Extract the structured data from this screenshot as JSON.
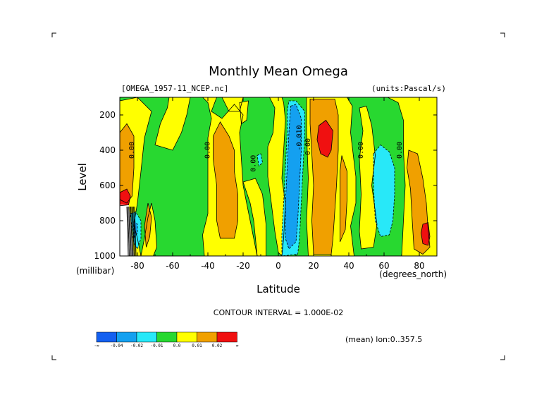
{
  "chart_data": {
    "type": "heatmap",
    "title": "Monthly Mean Omega",
    "dataset_label": "[OMEGA_1957-11_NCEP.nc]",
    "units_label": "(units:Pascal/s)",
    "xlabel": "Latitude",
    "ylabel": "Level",
    "x_unit_label": "(degrees_north)",
    "y_unit_label": "(millibar)",
    "contour_interval_text": "CONTOUR INTERVAL = 1.000E-02",
    "mean_text": "(mean) lon:0..357.5",
    "x_ticks": [
      "-80",
      "-60",
      "-40",
      "-20",
      "0",
      "20",
      "40",
      "60",
      "80"
    ],
    "x_tick_values": [
      -80,
      -60,
      -40,
      -20,
      0,
      20,
      40,
      60,
      80
    ],
    "y_ticks": [
      "200",
      "400",
      "600",
      "800",
      "1000"
    ],
    "y_tick_values": [
      200,
      400,
      600,
      800,
      1000
    ],
    "xlim": [
      -90,
      90
    ],
    "ylim": [
      1000,
      100
    ],
    "contour_labels": [
      {
        "text": "0.00",
        "lat": -82,
        "lev": 400
      },
      {
        "text": "0.00",
        "lat": -39,
        "lev": 400
      },
      {
        "text": "0.00",
        "lat": -13,
        "lev": 475
      },
      {
        "text": "0.00",
        "lat": 48,
        "lev": 400
      },
      {
        "text": "0.00",
        "lat": 70,
        "lev": 400
      },
      {
        "text": "-0.010",
        "lat": 13,
        "lev": 330
      },
      {
        "text": "0.00",
        "lat": 18,
        "lev": 380
      }
    ],
    "colorbar": {
      "colors": [
        "#1460f0",
        "#14a0f0",
        "#28e8f8",
        "#28d830",
        "#ffff00",
        "#f0a000",
        "#f01010"
      ],
      "labels": [
        "-∞",
        "-0.04",
        "-0.02",
        "-0.01",
        "0.0",
        "0.01",
        "0.02",
        "∞"
      ]
    },
    "regions": [
      {
        "level": "green",
        "color": "#28d830",
        "polygons": [
          [
            [
              -90,
              100
            ],
            [
              90,
              100
            ],
            [
              90,
              1000
            ],
            [
              -90,
              1000
            ]
          ]
        ]
      },
      {
        "level": "yellow",
        "color": "#ffff00",
        "polygons": [
          [
            [
              -90,
              120
            ],
            [
              -80,
              100
            ],
            [
              -72,
              180
            ],
            [
              -76,
              330
            ],
            [
              -78,
              520
            ],
            [
              -80,
              700
            ],
            [
              -82,
              820
            ],
            [
              -80,
              900
            ],
            [
              -78,
              1000
            ],
            [
              -90,
              1000
            ]
          ],
          [
            [
              -78,
              1000
            ],
            [
              -76,
              900
            ],
            [
              -74,
              780
            ],
            [
              -72,
              700
            ],
            [
              -70,
              800
            ],
            [
              -69,
              950
            ],
            [
              -71,
              1000
            ]
          ],
          [
            [
              -62,
              100
            ],
            [
              -50,
              100
            ],
            [
              -52,
              200
            ],
            [
              -55,
              300
            ],
            [
              -60,
              400
            ],
            [
              -70,
              370
            ],
            [
              -67,
              250
            ],
            [
              -63,
              160
            ]
          ],
          [
            [
              -43,
              100
            ],
            [
              -40,
              130
            ],
            [
              -38,
              220
            ],
            [
              -40,
              330
            ],
            [
              -40,
              600
            ],
            [
              -40,
              760
            ],
            [
              -43,
              880
            ],
            [
              -42,
              1000
            ],
            [
              -12,
              1000
            ],
            [
              -14,
              900
            ],
            [
              -17,
              750
            ],
            [
              -20,
              600
            ],
            [
              -22,
              300
            ],
            [
              -20,
              200
            ],
            [
              -25,
              140
            ],
            [
              -32,
              220
            ],
            [
              -38,
              180
            ],
            [
              -35,
              100
            ]
          ],
          [
            [
              -32,
              100
            ],
            [
              -28,
              180
            ],
            [
              -22,
              180
            ],
            [
              -20,
              100
            ]
          ],
          [
            [
              -20,
              580
            ],
            [
              -16,
              700
            ],
            [
              -14,
              800
            ],
            [
              -12,
              1000
            ],
            [
              -7,
              1000
            ],
            [
              -7,
              820
            ],
            [
              -9,
              650
            ],
            [
              -13,
              560
            ]
          ],
          [
            [
              -5,
              100
            ],
            [
              -2,
              160
            ],
            [
              -3,
              300
            ],
            [
              -6,
              380
            ],
            [
              -6,
              550
            ],
            [
              -4,
              700
            ],
            [
              -2,
              860
            ],
            [
              0,
              980
            ],
            [
              2,
              1000
            ],
            [
              3,
              900
            ],
            [
              4,
              700
            ],
            [
              2,
              560
            ],
            [
              3,
              400
            ],
            [
              4,
              230
            ],
            [
              3,
              130
            ],
            [
              2,
              100
            ]
          ],
          [
            [
              16,
              100
            ],
            [
              16,
              300
            ],
            [
              17,
              560
            ],
            [
              16,
              800
            ],
            [
              17,
              1000
            ],
            [
              43,
              1000
            ],
            [
              41,
              830
            ],
            [
              44,
              700
            ],
            [
              44,
              550
            ],
            [
              41,
              300
            ],
            [
              42,
              150
            ],
            [
              39,
              100
            ]
          ],
          [
            [
              46,
              160
            ],
            [
              48,
              290
            ],
            [
              46,
              450
            ],
            [
              47,
              650
            ],
            [
              46,
              860
            ],
            [
              47,
              960
            ],
            [
              54,
              950
            ],
            [
              56,
              820
            ],
            [
              53,
              600
            ],
            [
              55,
              430
            ],
            [
              53,
              260
            ],
            [
              50,
              150
            ]
          ],
          [
            [
              62,
              100
            ],
            [
              68,
              130
            ],
            [
              71,
              230
            ],
            [
              71,
              400
            ],
            [
              72,
              600
            ],
            [
              71,
              800
            ],
            [
              70,
              1000
            ],
            [
              90,
              1000
            ],
            [
              90,
              100
            ]
          ],
          [
            [
              -22,
              130
            ],
            [
              -17,
              120
            ],
            [
              -18,
              230
            ],
            [
              -21,
              250
            ]
          ]
        ]
      },
      {
        "level": "orange",
        "color": "#f0a000",
        "polygons": [
          [
            [
              -90,
              300
            ],
            [
              -86,
              250
            ],
            [
              -82,
              320
            ],
            [
              -82,
              500
            ],
            [
              -83,
              660
            ],
            [
              -86,
              700
            ],
            [
              -90,
              680
            ]
          ],
          [
            [
              -37,
              320
            ],
            [
              -33,
              240
            ],
            [
              -28,
              320
            ],
            [
              -25,
              400
            ],
            [
              -25,
              520
            ],
            [
              -23,
              650
            ],
            [
              -23,
              800
            ],
            [
              -25,
              900
            ],
            [
              -33,
              900
            ],
            [
              -35,
              800
            ],
            [
              -35,
              600
            ],
            [
              -37,
              450
            ]
          ],
          [
            [
              18,
              110
            ],
            [
              22,
              110
            ],
            [
              32,
              110
            ],
            [
              34,
              200
            ],
            [
              34,
              400
            ],
            [
              33,
              600
            ],
            [
              32,
              750
            ],
            [
              31,
              900
            ],
            [
              30,
              990
            ],
            [
              20,
              990
            ],
            [
              19,
              800
            ],
            [
              20,
              600
            ],
            [
              19,
              420
            ],
            [
              18,
              250
            ]
          ],
          [
            [
              74,
              400
            ],
            [
              79,
              420
            ],
            [
              82,
              560
            ],
            [
              84,
              700
            ],
            [
              85,
              850
            ],
            [
              86,
              950
            ],
            [
              82,
              990
            ],
            [
              77,
              960
            ],
            [
              76,
              800
            ],
            [
              75,
              620
            ],
            [
              73,
              500
            ]
          ],
          [
            [
              36,
              430
            ],
            [
              39,
              520
            ],
            [
              39,
              680
            ],
            [
              38,
              850
            ],
            [
              35,
              920
            ],
            [
              35,
              700
            ],
            [
              35,
              520
            ]
          ],
          [
            [
              -74,
              700
            ],
            [
              -72,
              780
            ],
            [
              -73,
              890
            ],
            [
              -75,
              950
            ],
            [
              -76,
              830
            ]
          ]
        ]
      },
      {
        "level": "red",
        "color": "#f01010",
        "polygons": [
          [
            [
              -90,
              640
            ],
            [
              -86,
              620
            ],
            [
              -84,
              660
            ],
            [
              -85,
              710
            ],
            [
              -90,
              715
            ]
          ],
          [
            [
              23,
              260
            ],
            [
              27,
              230
            ],
            [
              31,
              290
            ],
            [
              30,
              400
            ],
            [
              28,
              440
            ],
            [
              24,
              420
            ],
            [
              22,
              340
            ]
          ],
          [
            [
              82,
              820
            ],
            [
              85,
              810
            ],
            [
              86,
              890
            ],
            [
              85,
              940
            ],
            [
              82,
              930
            ],
            [
              81,
              870
            ]
          ]
        ]
      },
      {
        "level": "cyan",
        "color": "#28e8f8",
        "polygons": [
          [
            [
              6,
              120
            ],
            [
              10,
              120
            ],
            [
              15,
              180
            ],
            [
              15,
              300
            ],
            [
              14,
              500
            ],
            [
              13,
              700
            ],
            [
              12,
              900
            ],
            [
              11,
              990
            ],
            [
              2,
              1000
            ],
            [
              2,
              880
            ],
            [
              3,
              700
            ],
            [
              4,
              500
            ],
            [
              5,
              300
            ],
            [
              5,
              180
            ]
          ],
          [
            [
              54,
              420
            ],
            [
              58,
              370
            ],
            [
              63,
              410
            ],
            [
              66,
              500
            ],
            [
              66,
              650
            ],
            [
              65,
              800
            ],
            [
              63,
              880
            ],
            [
              58,
              890
            ],
            [
              55,
              800
            ],
            [
              54,
              600
            ]
          ],
          [
            [
              -84,
              760
            ],
            [
              -81,
              750
            ],
            [
              -78,
              800
            ],
            [
              -78,
              900
            ],
            [
              -80,
              960
            ],
            [
              -82,
              930
            ],
            [
              -83,
              850
            ]
          ],
          [
            [
              -12,
              430
            ],
            [
              -10,
              420
            ],
            [
              -9,
              470
            ],
            [
              -11,
              490
            ]
          ]
        ]
      },
      {
        "level": "blue",
        "color": "#14a0f0",
        "polygons": [
          [
            [
              7,
              150
            ],
            [
              10,
              140
            ],
            [
              13,
              220
            ],
            [
              13,
              400
            ],
            [
              12,
              600
            ],
            [
              11,
              800
            ],
            [
              10,
              920
            ],
            [
              6,
              960
            ],
            [
              4,
              900
            ],
            [
              4,
              700
            ],
            [
              5,
              500
            ],
            [
              6,
              300
            ]
          ],
          [
            [
              -82,
              800
            ],
            [
              -80,
              820
            ],
            [
              -80,
              870
            ],
            [
              -82,
              900
            ]
          ]
        ]
      },
      {
        "level": "white",
        "color": "#ffffff",
        "polygons": [
          [
            [
              -90,
              710
            ],
            [
              -85,
              710
            ],
            [
              -84,
              780
            ],
            [
              -83,
              900
            ],
            [
              -82,
              1000
            ],
            [
              -90,
              1000
            ]
          ]
        ]
      }
    ]
  }
}
